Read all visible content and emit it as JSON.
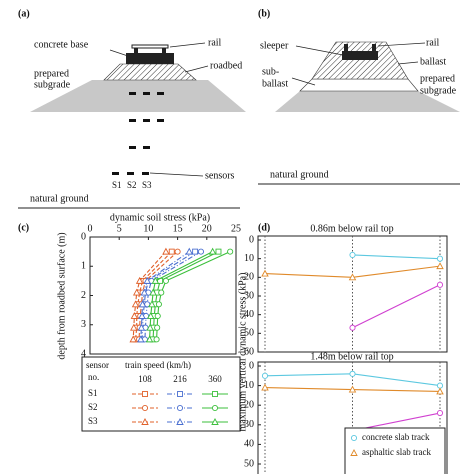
{
  "panels": {
    "a": {
      "label": "(a)",
      "rail": "rail",
      "concrete_base": "concrete base",
      "roadbed": "roadbed",
      "prepared_subgrade": [
        "prepared",
        "subgrade"
      ],
      "sensors": "sensors",
      "sensor_names": [
        "S1",
        "S2",
        "S3"
      ],
      "natural_ground": "natural ground"
    },
    "b": {
      "label": "(b)",
      "rail": "rail",
      "sleeper": "sleeper",
      "ballast": "ballast",
      "sub_ballast": [
        "sub-",
        "ballast"
      ],
      "prepared_subgrade": [
        "prepared",
        "subgrade"
      ],
      "natural_ground": "natural ground"
    }
  },
  "chart_data": [
    {
      "type": "line",
      "panel_label": "(c)",
      "x_label": "dynamic soil stress (kPa)",
      "y_label": "depth from roadbed surface (m)",
      "xlim": [
        0,
        25
      ],
      "xticks": [
        0,
        5,
        10,
        15,
        20,
        25
      ],
      "ylim": [
        0,
        4
      ],
      "yticks": [
        0,
        1,
        2,
        3,
        4
      ],
      "y_inverted": true,
      "x_axis": "top",
      "depth": [
        0.5,
        1.5,
        1.9,
        2.3,
        2.7,
        3.1,
        3.5
      ],
      "legend_title": "sensor",
      "legend_subtitle": "train speed (km/h)",
      "legend_no": "no.",
      "speeds": [
        {
          "value": 108,
          "color": "#e0602a",
          "line_style": "dashed"
        },
        {
          "value": 216,
          "color": "#4a6fd0",
          "line_style": "dashdot"
        },
        {
          "value": 360,
          "color": "#3bbf3b",
          "line_style": "solid"
        }
      ],
      "sensors": [
        {
          "name": "S1",
          "marker": "square",
          "values": [
            [
              14,
              9,
              8.5,
              8.2,
              8,
              8,
              7.8
            ],
            [
              18,
              10,
              9.5,
              9.3,
              9.1,
              9,
              8.9
            ],
            [
              22,
              12,
              11.5,
              11.2,
              11,
              10.9,
              10.8
            ]
          ]
        },
        {
          "name": "S2",
          "marker": "circle",
          "values": [
            [
              15,
              9.5,
              9,
              8.8,
              8.6,
              8.5,
              8.4
            ],
            [
              19,
              10.5,
              10,
              9.8,
              9.6,
              9.5,
              9.4
            ],
            [
              24,
              13,
              12.2,
              11.8,
              11.6,
              11.5,
              11.4
            ]
          ]
        },
        {
          "name": "S3",
          "marker": "triangle",
          "values": [
            [
              13,
              8.5,
              8,
              7.8,
              7.6,
              7.5,
              7.4
            ],
            [
              17,
              9.8,
              9.3,
              9,
              8.9,
              8.8,
              8.7
            ],
            [
              21,
              11.2,
              10.8,
              10.6,
              10.4,
              10.3,
              10.2
            ]
          ]
        }
      ]
    },
    {
      "type": "line",
      "panel_label": "(d)",
      "title": "0.86m below rail top",
      "y_label": "maximum vertical dynamic stress (kPa)",
      "categories": [
        null,
        null,
        null
      ],
      "ylim": [
        0,
        60
      ],
      "yticks": [
        0,
        10,
        20,
        30,
        40,
        50,
        60
      ],
      "y_inverted": true,
      "series": [
        {
          "name": "concrete slab track",
          "color": "#5cc8e0",
          "marker": "circle",
          "values": [
            null,
            8,
            10
          ]
        },
        {
          "name": "asphaltic slab track",
          "color": "#e08a2a",
          "marker": "triangle",
          "values": [
            18,
            20,
            14
          ]
        },
        {
          "color": "#d040d0",
          "marker": "circle",
          "values": [
            null,
            47,
            24
          ]
        }
      ]
    },
    {
      "type": "line",
      "title": "1.48m below rail top",
      "categories": [
        null,
        null,
        null
      ],
      "ylim": [
        0,
        50
      ],
      "yticks": [
        0,
        10,
        20,
        30,
        40,
        50
      ],
      "y_inverted": true,
      "legend": "lower right",
      "series": [
        {
          "name": "concrete slab track",
          "color": "#5cc8e0",
          "marker": "circle",
          "values": [
            5,
            4,
            10
          ]
        },
        {
          "name": "asphaltic slab track",
          "color": "#e08a2a",
          "marker": "triangle",
          "values": [
            11,
            12,
            13
          ]
        },
        {
          "color": "#d040d0",
          "marker": "circle",
          "values": [
            null,
            33,
            24
          ]
        }
      ]
    }
  ]
}
